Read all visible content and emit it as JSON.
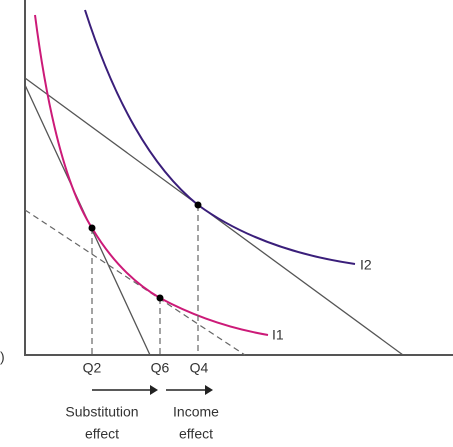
{
  "origin_label": ")",
  "curve_labels": [
    "I2",
    "I1"
  ],
  "quantity_labels": [
    "Q2",
    "Q6",
    "Q4"
  ],
  "effects": [
    {
      "lines": [
        "Substitution",
        "effect"
      ]
    },
    {
      "lines": [
        "Income",
        "effect"
      ]
    }
  ]
}
